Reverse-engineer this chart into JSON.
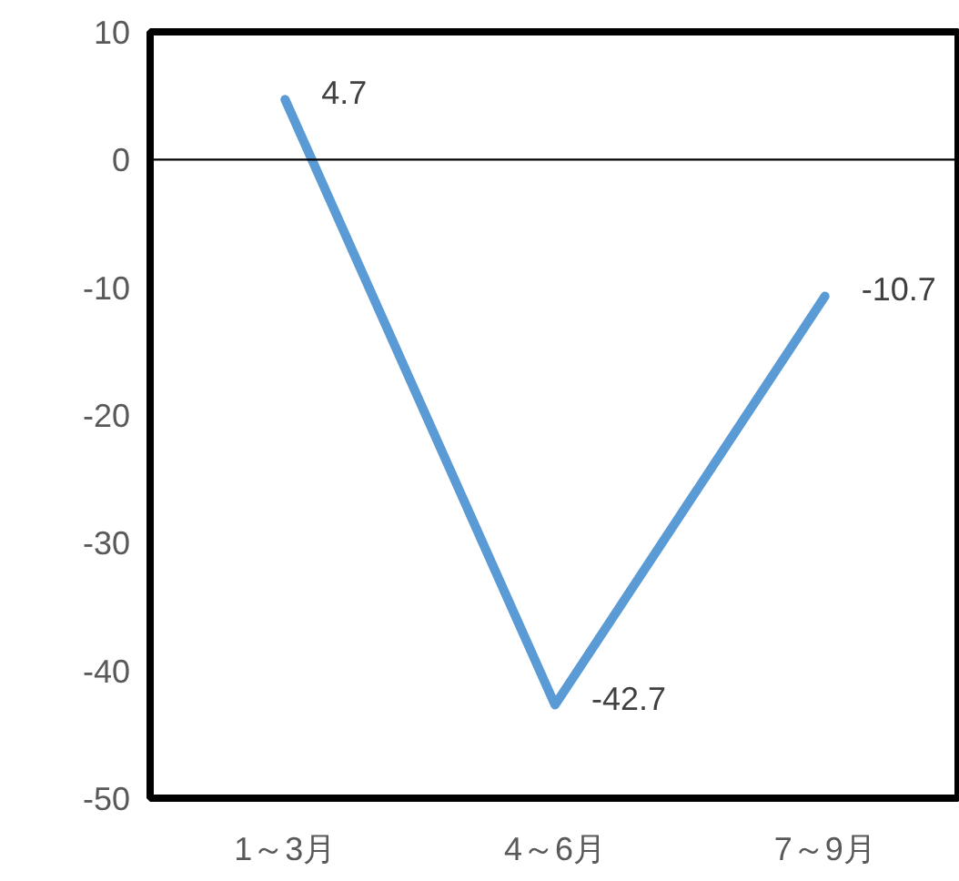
{
  "chart_data": {
    "type": "line",
    "categories": [
      "1～3月",
      "4～6月",
      "7～9月"
    ],
    "series": [
      {
        "color": "#5b9bd5",
        "values": [
          4.7,
          -42.7,
          -10.7
        ]
      }
    ],
    "ylim": [
      -50,
      10
    ],
    "yticks": [
      -50,
      -40,
      -30,
      -20,
      -10,
      0,
      10
    ],
    "ref_lines": [
      {
        "axis": "y",
        "value": 0,
        "color": "#000000"
      }
    ],
    "data_labels": true,
    "grid": false,
    "marker": "none",
    "line_style": "solid"
  }
}
